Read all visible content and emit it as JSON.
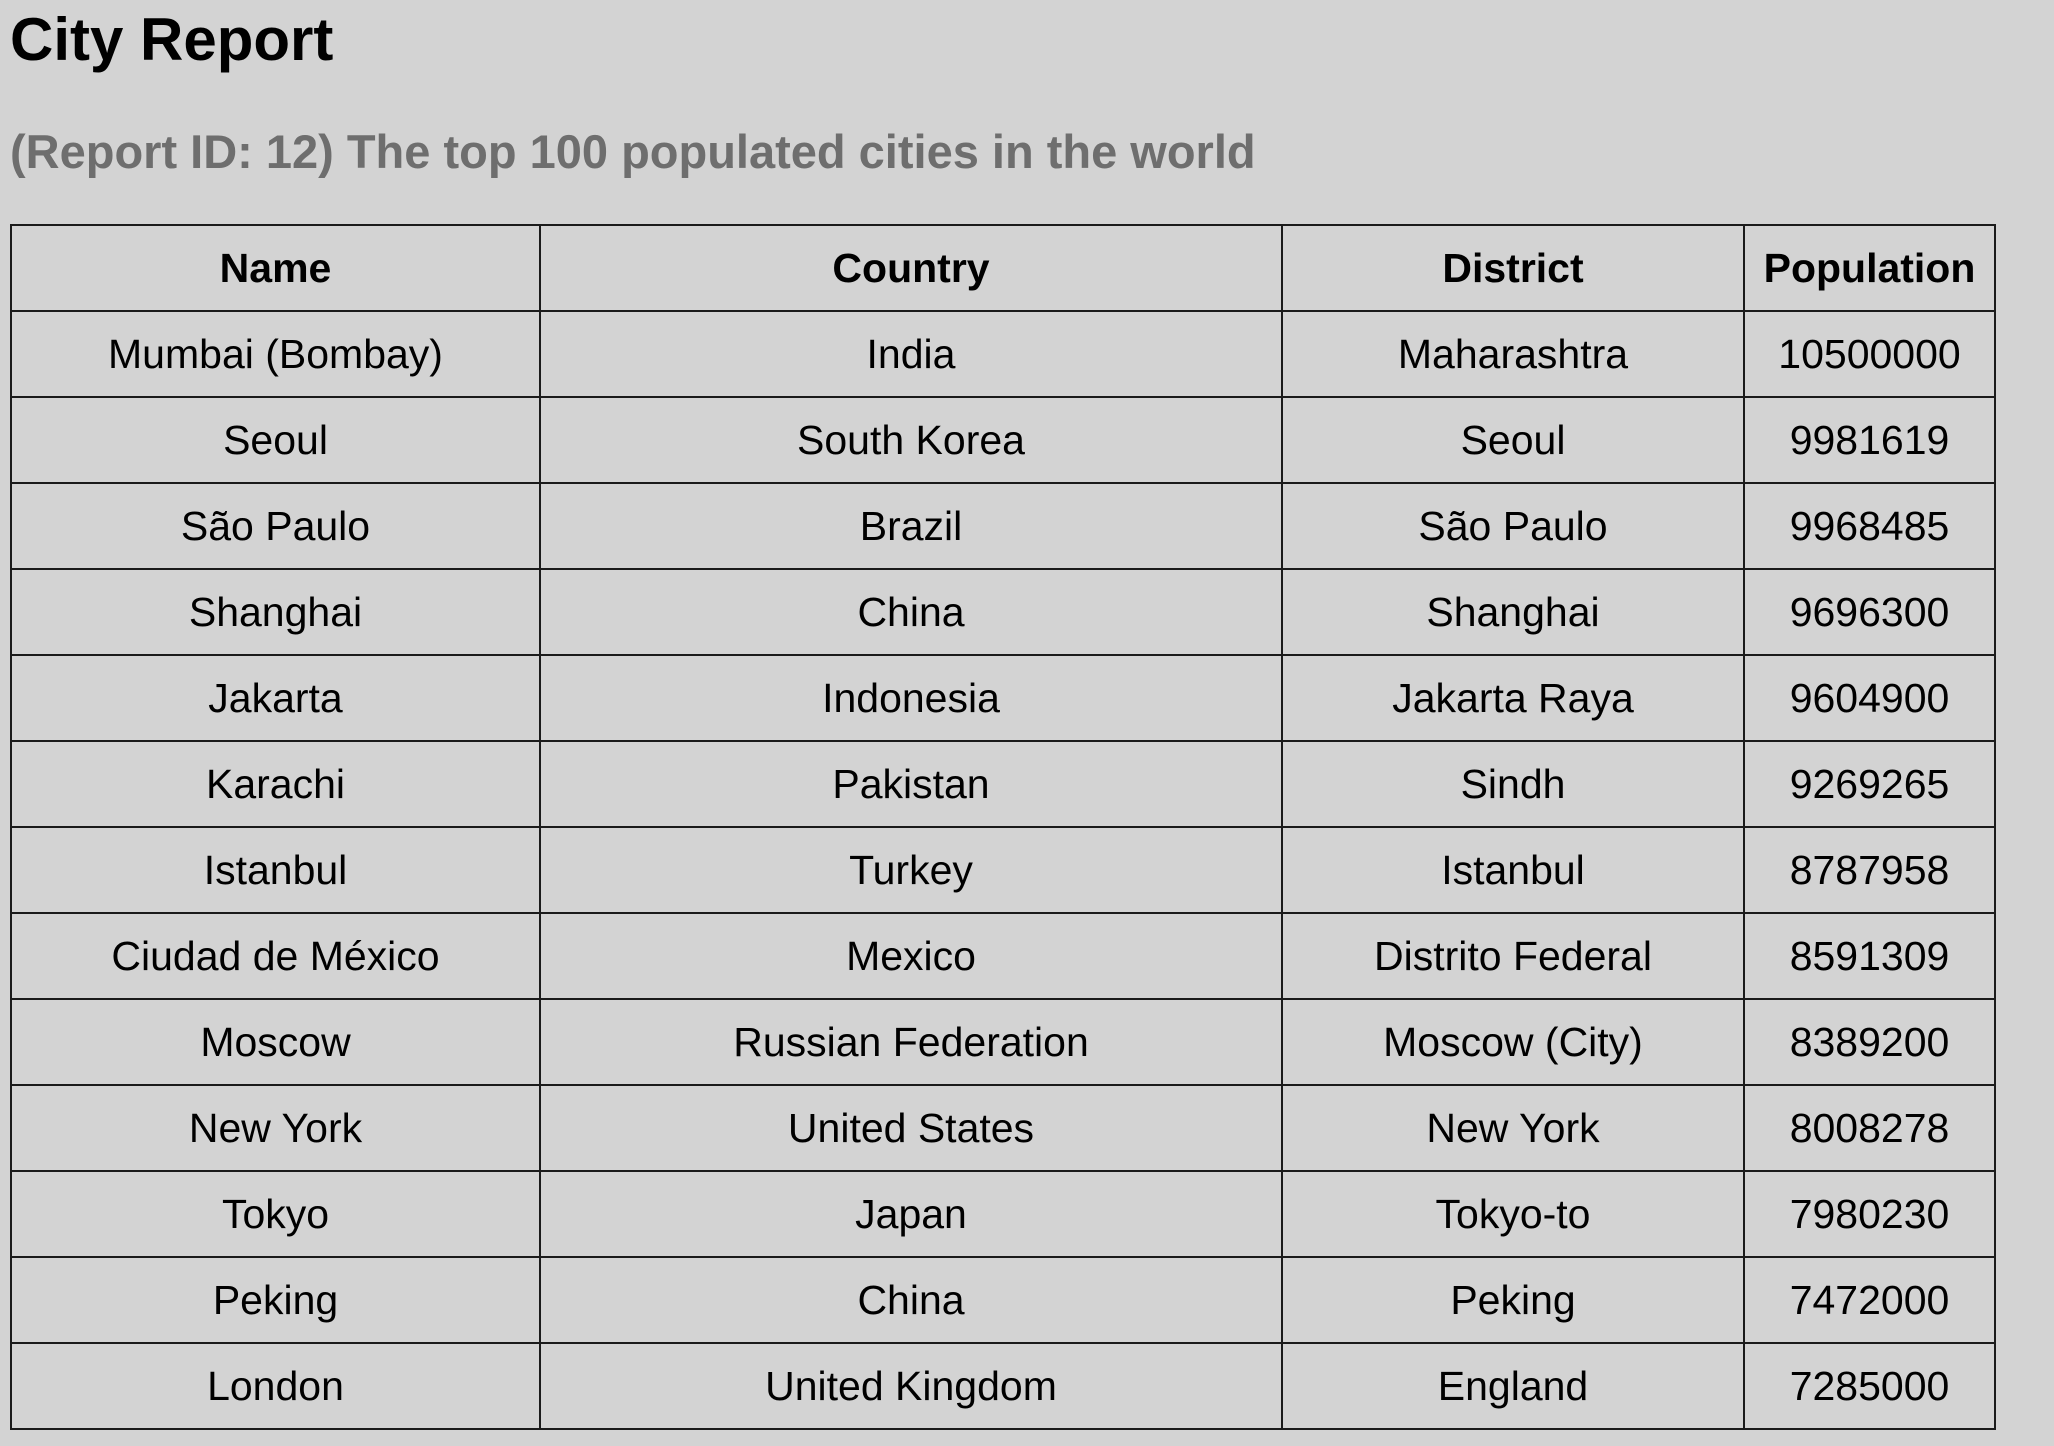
{
  "report": {
    "title": "City Report",
    "subtitle": "(Report ID: 12) The top 100 populated cities in the world"
  },
  "table": {
    "headers": [
      "Name",
      "Country",
      "District",
      "Population"
    ],
    "rows": [
      [
        "Mumbai (Bombay)",
        "India",
        "Maharashtra",
        "10500000"
      ],
      [
        "Seoul",
        "South Korea",
        "Seoul",
        "9981619"
      ],
      [
        "São Paulo",
        "Brazil",
        "São Paulo",
        "9968485"
      ],
      [
        "Shanghai",
        "China",
        "Shanghai",
        "9696300"
      ],
      [
        "Jakarta",
        "Indonesia",
        "Jakarta Raya",
        "9604900"
      ],
      [
        "Karachi",
        "Pakistan",
        "Sindh",
        "9269265"
      ],
      [
        "Istanbul",
        "Turkey",
        "Istanbul",
        "8787958"
      ],
      [
        "Ciudad de México",
        "Mexico",
        "Distrito Federal",
        "8591309"
      ],
      [
        "Moscow",
        "Russian Federation",
        "Moscow (City)",
        "8389200"
      ],
      [
        "New York",
        "United States",
        "New York",
        "8008278"
      ],
      [
        "Tokyo",
        "Japan",
        "Tokyo-to",
        "7980230"
      ],
      [
        "Peking",
        "China",
        "Peking",
        "7472000"
      ],
      [
        "London",
        "United Kingdom",
        "England",
        "7285000"
      ]
    ]
  },
  "colors": {
    "background": "#d3d3d3",
    "subtitle": "#6e6e6e",
    "border": "#1a1a1a"
  }
}
